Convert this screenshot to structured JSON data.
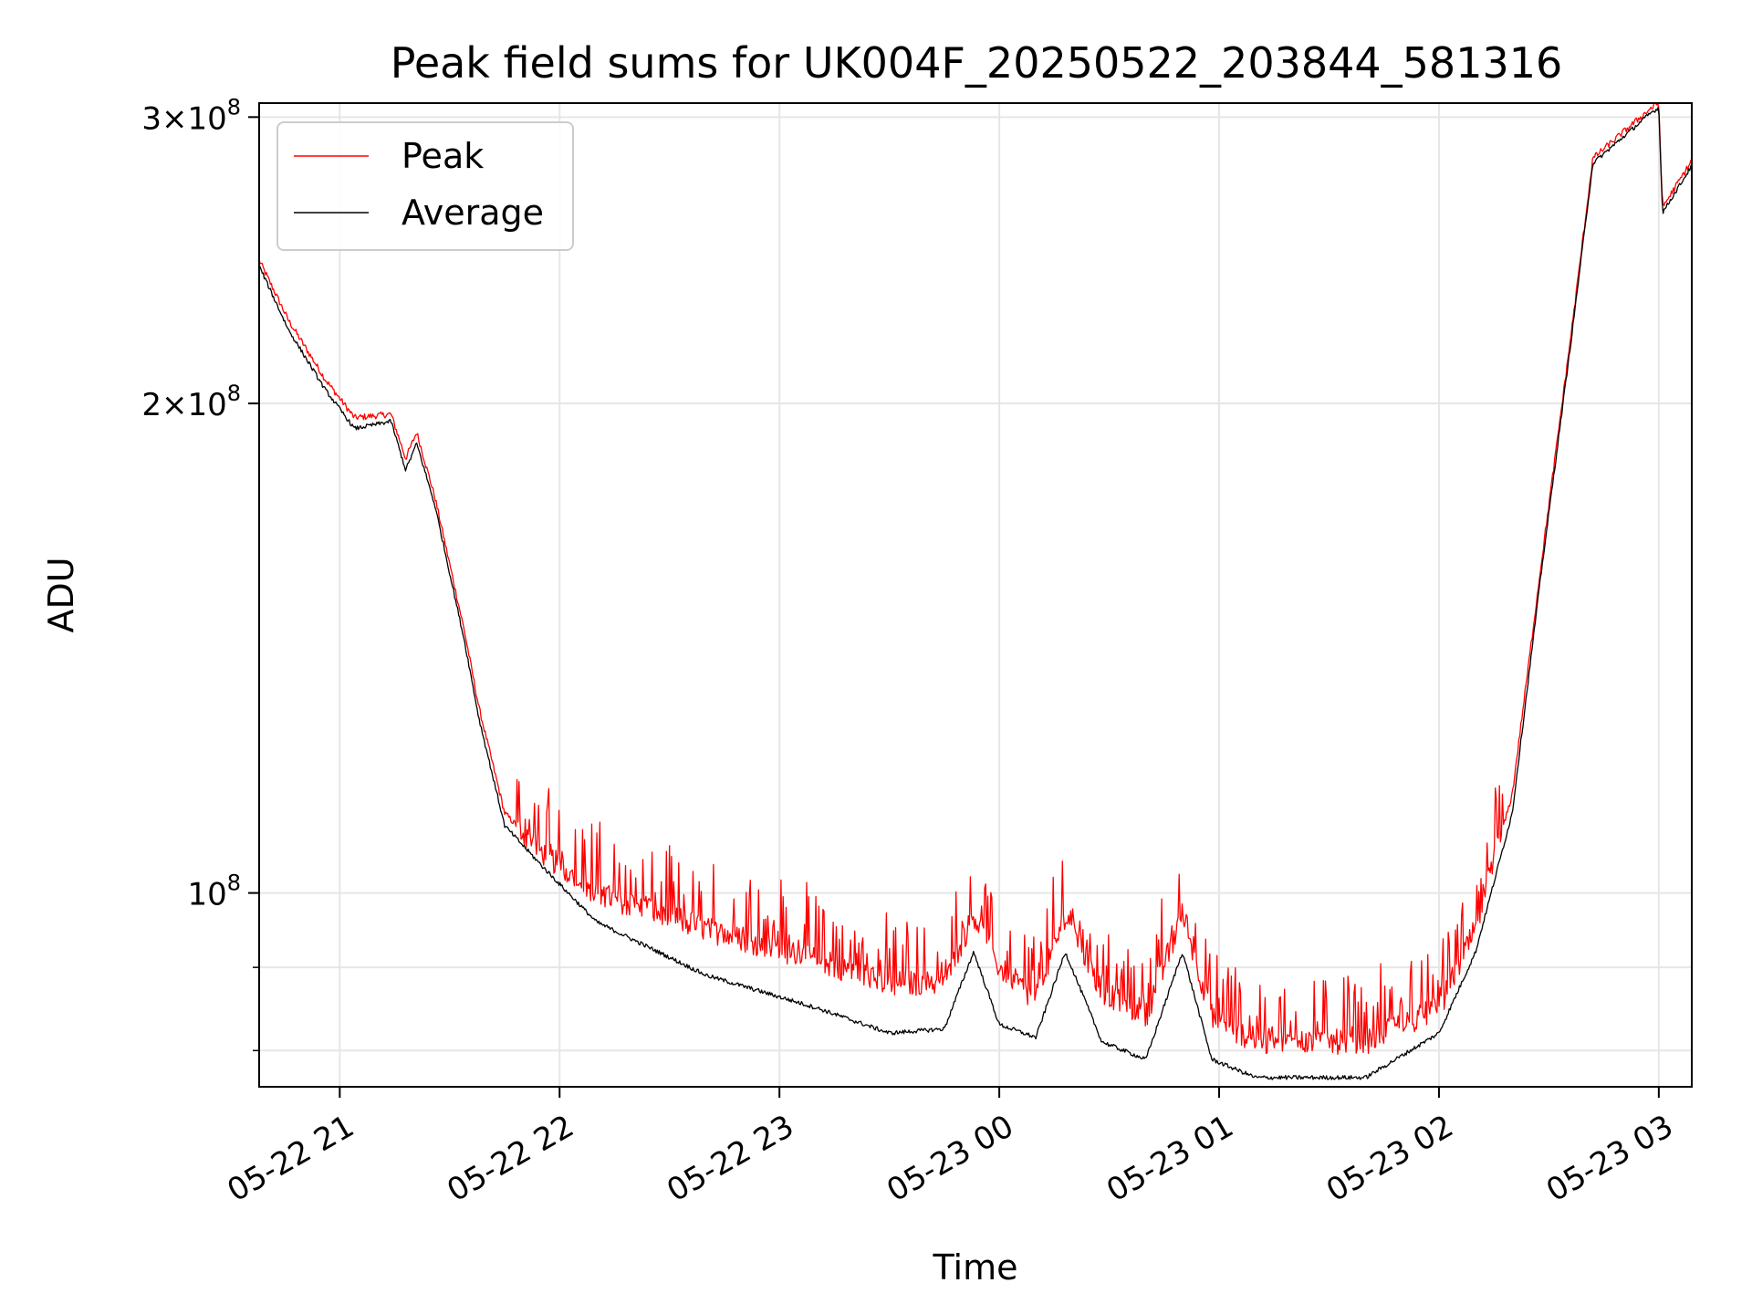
{
  "chart_data": {
    "type": "line",
    "title": "Peak field sums for UK004F_20250522_203844_581316",
    "xlabel": "Time",
    "ylabel": "ADU",
    "y_scale": "log",
    "xlim": [
      "2025-05-22 20:38",
      "2025-05-23 03:09"
    ],
    "ylim": [
      76000000,
      306000000
    ],
    "grid": true,
    "legend_position": "top-left",
    "x_ticks": [
      {
        "time": "2025-05-22 21:00",
        "label": "05-22 21"
      },
      {
        "time": "2025-05-22 22:00",
        "label": "05-22 22"
      },
      {
        "time": "2025-05-22 23:00",
        "label": "05-22 23"
      },
      {
        "time": "2025-05-23 00:00",
        "label": "05-23 00"
      },
      {
        "time": "2025-05-23 01:00",
        "label": "05-23 01"
      },
      {
        "time": "2025-05-23 02:00",
        "label": "05-23 02"
      },
      {
        "time": "2025-05-23 03:00",
        "label": "05-23 03"
      }
    ],
    "y_major_ticks": [
      {
        "value": 100000000,
        "label": "10",
        "exp": "8"
      },
      {
        "value": 200000000,
        "label": "2×10",
        "exp": "8"
      },
      {
        "value": 300000000,
        "label": "3×10",
        "exp": "8"
      }
    ],
    "y_minor_ticks": [
      80000000,
      90000000
    ],
    "series": [
      {
        "name": "Peak",
        "color": "#ff0000",
        "noise": "high",
        "points": [
          [
            "2025-05-22 20:38",
            245000000
          ],
          [
            "2025-05-22 20:46",
            225000000
          ],
          [
            "2025-05-22 20:56",
            207000000
          ],
          [
            "2025-05-22 21:04",
            196000000
          ],
          [
            "2025-05-22 21:14",
            197000000
          ],
          [
            "2025-05-22 21:18",
            185000000
          ],
          [
            "2025-05-22 21:21",
            192000000
          ],
          [
            "2025-05-22 21:26",
            175000000
          ],
          [
            "2025-05-22 21:34",
            145000000
          ],
          [
            "2025-05-22 21:38",
            130000000
          ],
          [
            "2025-05-22 21:45",
            112000000
          ],
          [
            "2025-05-22 21:55",
            106000000
          ],
          [
            "2025-05-22 22:10",
            100000000
          ],
          [
            "2025-05-22 22:40",
            95000000
          ],
          [
            "2025-05-22 23:10",
            91000000
          ],
          [
            "2025-05-22 23:30",
            88000000
          ],
          [
            "2025-05-22 23:45",
            88000000
          ],
          [
            "2025-05-22 23:53",
            97000000
          ],
          [
            "2025-05-23 00:00",
            90000000
          ],
          [
            "2025-05-23 00:10",
            86000000
          ],
          [
            "2025-05-23 00:18",
            97000000
          ],
          [
            "2025-05-23 00:28",
            87000000
          ],
          [
            "2025-05-23 00:40",
            84000000
          ],
          [
            "2025-05-23 00:50",
            97000000
          ],
          [
            "2025-05-23 00:58",
            84000000
          ],
          [
            "2025-05-23 01:10",
            81000000
          ],
          [
            "2025-05-23 01:40",
            81000000
          ],
          [
            "2025-05-23 02:00",
            85000000
          ],
          [
            "2025-05-23 02:10",
            95000000
          ],
          [
            "2025-05-23 02:20",
            115000000
          ],
          [
            "2025-05-23 02:28",
            160000000
          ],
          [
            "2025-05-23 02:36",
            220000000
          ],
          [
            "2025-05-23 02:42",
            283000000
          ],
          [
            "2025-05-23 02:58",
            304000000
          ],
          [
            "2025-05-23 03:00",
            306000000
          ],
          [
            "2025-05-23 03:01",
            264000000
          ],
          [
            "2025-05-23 03:09",
            282000000
          ]
        ]
      },
      {
        "name": "Average",
        "color": "#000000",
        "noise": "low",
        "points": [
          [
            "2025-05-22 20:38",
            243000000
          ],
          [
            "2025-05-22 20:46",
            222000000
          ],
          [
            "2025-05-22 20:56",
            204000000
          ],
          [
            "2025-05-22 21:04",
            193000000
          ],
          [
            "2025-05-22 21:14",
            195000000
          ],
          [
            "2025-05-22 21:18",
            182000000
          ],
          [
            "2025-05-22 21:21",
            189000000
          ],
          [
            "2025-05-22 21:26",
            173000000
          ],
          [
            "2025-05-22 21:34",
            143000000
          ],
          [
            "2025-05-22 21:38",
            128000000
          ],
          [
            "2025-05-22 21:45",
            110000000
          ],
          [
            "2025-05-22 21:55",
            104000000
          ],
          [
            "2025-05-22 22:10",
            96000000
          ],
          [
            "2025-05-22 22:40",
            89000000
          ],
          [
            "2025-05-22 23:10",
            85000000
          ],
          [
            "2025-05-22 23:30",
            82000000
          ],
          [
            "2025-05-22 23:45",
            82500000
          ],
          [
            "2025-05-22 23:53",
            92000000
          ],
          [
            "2025-05-23 00:00",
            83000000
          ],
          [
            "2025-05-23 00:10",
            81500000
          ],
          [
            "2025-05-23 00:18",
            92000000
          ],
          [
            "2025-05-23 00:28",
            81000000
          ],
          [
            "2025-05-23 00:40",
            79000000
          ],
          [
            "2025-05-23 00:50",
            92000000
          ],
          [
            "2025-05-23 00:58",
            79000000
          ],
          [
            "2025-05-23 01:10",
            77000000
          ],
          [
            "2025-05-23 01:40",
            77000000
          ],
          [
            "2025-05-23 02:00",
            82000000
          ],
          [
            "2025-05-23 02:10",
            92000000
          ],
          [
            "2025-05-23 02:20",
            112000000
          ],
          [
            "2025-05-23 02:28",
            158000000
          ],
          [
            "2025-05-23 02:36",
            218000000
          ],
          [
            "2025-05-23 02:42",
            281000000
          ],
          [
            "2025-05-23 02:58",
            302000000
          ],
          [
            "2025-05-23 03:00",
            304000000
          ],
          [
            "2025-05-23 03:01",
            262000000
          ],
          [
            "2025-05-23 03:09",
            280000000
          ]
        ]
      }
    ]
  }
}
